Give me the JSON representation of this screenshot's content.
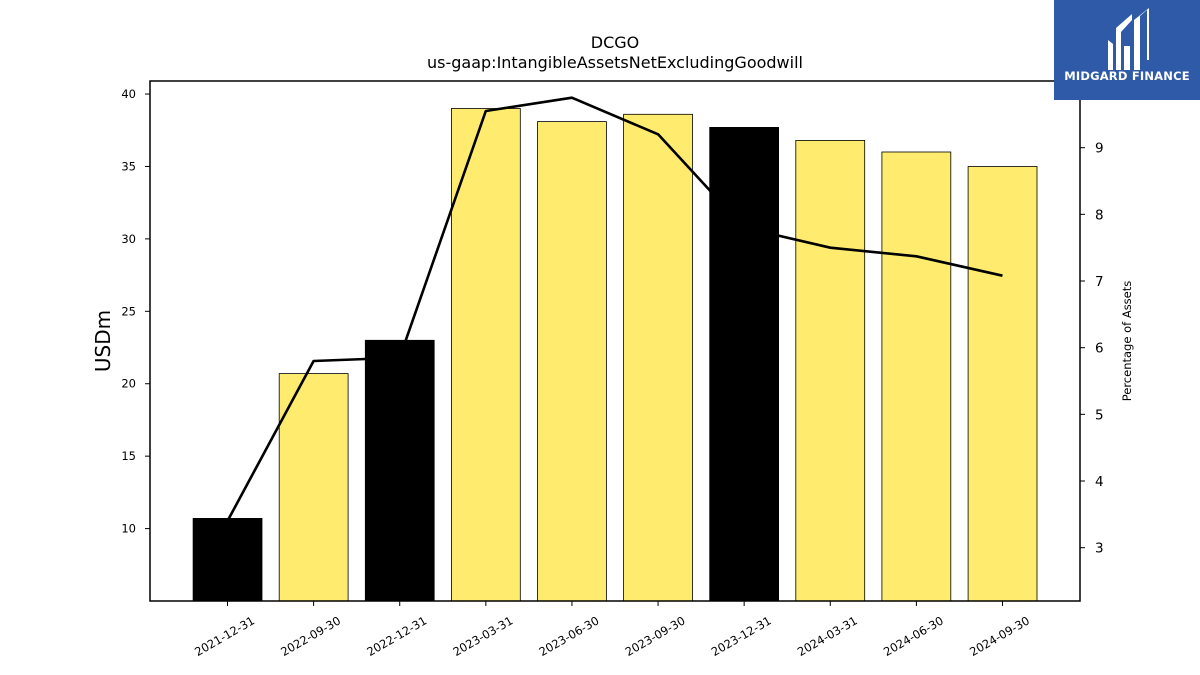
{
  "chart_data": {
    "type": "bar",
    "title": "DCGO",
    "subtitle": "us-gaap:IntangibleAssetsNetExcludingGoodwill",
    "ylabel": "USDm",
    "y2label": "Percentage of Assets",
    "categories": [
      "2021-12-31",
      "2022-09-30",
      "2022-12-31",
      "2023-03-31",
      "2023-06-30",
      "2023-09-30",
      "2023-12-31",
      "2024-03-31",
      "2024-06-30",
      "2024-09-30"
    ],
    "series": [
      {
        "axis": "left",
        "type": "bar",
        "values": [
          10.7,
          20.7,
          23.0,
          39.0,
          38.1,
          38.6,
          37.7,
          36.8,
          36.0,
          35.0
        ],
        "colors": [
          "#000000",
          "#ffec6e",
          "#000000",
          "#ffec6e",
          "#ffec6e",
          "#ffec6e",
          "#000000",
          "#ffec6e",
          "#ffec6e",
          "#ffec6e"
        ]
      },
      {
        "axis": "right",
        "type": "line",
        "color": "#000000",
        "values": [
          3.4,
          5.8,
          5.85,
          9.55,
          9.75,
          9.2,
          7.8,
          7.5,
          7.37,
          7.08
        ]
      }
    ],
    "ylim": [
      5.0,
      40.9
    ],
    "yticks": [
      10,
      15,
      20,
      25,
      30,
      35,
      40
    ],
    "y2lim": [
      2.2,
      10.0
    ],
    "y2ticks": [
      3,
      4,
      5,
      6,
      7,
      8,
      9
    ]
  },
  "logo": {
    "text": "MIDGARD FINANCE",
    "background": "#2f5aa8"
  }
}
